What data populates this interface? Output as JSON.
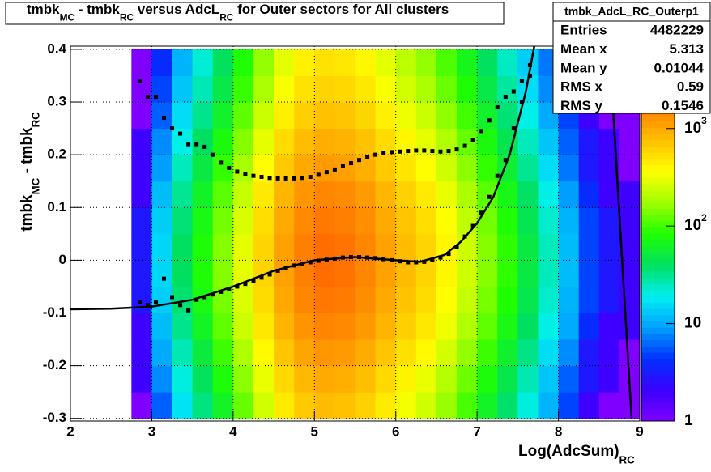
{
  "chart_data": {
    "type": "heatmap-profile",
    "title": [
      "tmbk",
      "MC",
      " - tmbk",
      "RC",
      " versus AdcL",
      "RC",
      " for Outer sectors for All clusters"
    ],
    "x_label": [
      "Log(AdcSum)",
      "RC"
    ],
    "y_label": [
      "tmbk",
      "MC",
      " - tmbk",
      "RC"
    ],
    "xlim": [
      2,
      9
    ],
    "xticks": [
      2,
      3,
      4,
      5,
      6,
      7,
      8,
      9
    ],
    "ylim": [
      -0.305,
      0.406
    ],
    "yticks": [
      -0.3,
      -0.2,
      -0.1,
      0,
      0.1,
      0.2,
      0.3,
      0.4
    ],
    "grid": true,
    "zlim": [
      1,
      7000
    ],
    "zlog": true,
    "zticks": [
      {
        "value": 1,
        "label": "1"
      },
      {
        "value": 10,
        "label": "10"
      },
      {
        "value": 100,
        "label": "10",
        "exponent": "2"
      },
      {
        "value": 1000,
        "label": "10",
        "exponent": "3"
      }
    ],
    "palette": [
      "#7f00ff",
      "#3a00ff",
      "#0030ff",
      "#00a0ff",
      "#00f0f0",
      "#00e060",
      "#20ff00",
      "#a0ff00",
      "#ffff00",
      "#ffc000",
      "#ff8000",
      "#ff3000",
      "#ff0000"
    ],
    "x_bins": [
      2.75,
      3,
      3.25,
      3.5,
      3.75,
      4,
      4.25,
      4.5,
      4.75,
      5,
      5.25,
      5.5,
      5.75,
      6,
      6.25,
      6.5,
      6.75,
      7,
      7.25,
      7.5,
      7.75,
      8,
      8.25,
      8.5,
      8.75,
      9
    ],
    "y_bins": [
      -0.3,
      -0.25,
      -0.2,
      -0.15,
      -0.1,
      -0.05,
      0,
      0.05,
      0.1,
      0.15,
      0.2,
      0.25,
      0.3,
      0.35,
      0.4
    ],
    "z": [
      [
        1,
        6,
        17,
        34,
        63,
        126,
        252,
        462,
        672,
        798,
        756,
        630,
        462,
        336,
        252,
        168,
        105,
        63,
        38,
        21,
        11,
        5,
        2,
        1,
        1
      ],
      [
        2,
        8,
        21,
        42,
        78,
        156,
        312,
        572,
        832,
        988,
        936,
        780,
        572,
        416,
        312,
        208,
        130,
        78,
        47,
        26,
        13,
        6,
        3,
        2,
        1
      ],
      [
        2,
        10,
        26,
        52,
        98,
        195,
        390,
        715,
        1040,
        1235,
        1170,
        975,
        715,
        520,
        390,
        260,
        163,
        98,
        59,
        33,
        16,
        8,
        3,
        2,
        1
      ],
      [
        2,
        12,
        32,
        64,
        120,
        240,
        480,
        880,
        1280,
        1520,
        1440,
        1200,
        880,
        640,
        480,
        320,
        200,
        120,
        72,
        40,
        20,
        10,
        4,
        2,
        2
      ],
      [
        3,
        14,
        37,
        74,
        138,
        276,
        552,
        1012,
        1472,
        1748,
        1656,
        1380,
        1012,
        736,
        552,
        368,
        230,
        138,
        83,
        46,
        23,
        11,
        5,
        3,
        2
      ],
      [
        3,
        15,
        40,
        80,
        150,
        300,
        600,
        1100,
        1600,
        1900,
        1800,
        1500,
        1100,
        800,
        600,
        400,
        250,
        150,
        90,
        50,
        25,
        12,
        5,
        3,
        2
      ],
      [
        3,
        15,
        40,
        80,
        150,
        300,
        600,
        1100,
        1600,
        1900,
        1800,
        1500,
        1100,
        800,
        600,
        400,
        250,
        150,
        90,
        50,
        25,
        12,
        5,
        3,
        2
      ],
      [
        3,
        14,
        36,
        72,
        135,
        270,
        540,
        990,
        1440,
        1710,
        1620,
        1350,
        990,
        720,
        540,
        360,
        225,
        135,
        81,
        45,
        23,
        11,
        5,
        3,
        2
      ],
      [
        2,
        12,
        31,
        62,
        117,
        234,
        468,
        858,
        1248,
        1482,
        1404,
        1170,
        858,
        624,
        468,
        312,
        195,
        117,
        70,
        39,
        20,
        9,
        4,
        2,
        2
      ],
      [
        2,
        9,
        25,
        50,
        93,
        186,
        372,
        682,
        992,
        1178,
        1116,
        930,
        682,
        496,
        372,
        248,
        155,
        93,
        56,
        31,
        16,
        7,
        3,
        2,
        1
      ],
      [
        2,
        8,
        20,
        40,
        75,
        150,
        300,
        550,
        800,
        950,
        900,
        750,
        550,
        400,
        300,
        200,
        125,
        75,
        45,
        25,
        13,
        6,
        3,
        2,
        1
      ],
      [
        1,
        6,
        16,
        32,
        60,
        120,
        240,
        440,
        640,
        760,
        720,
        600,
        440,
        320,
        240,
        160,
        100,
        60,
        36,
        20,
        10,
        5,
        2,
        1,
        1
      ],
      [
        1,
        5,
        13,
        26,
        48,
        96,
        192,
        352,
        512,
        608,
        576,
        480,
        352,
        256,
        192,
        128,
        80,
        48,
        29,
        16,
        8,
        4,
        2,
        1,
        1
      ],
      [
        1,
        4,
        11,
        22,
        41,
        81,
        162,
        297,
        432,
        513,
        486,
        405,
        297,
        216,
        162,
        108,
        68,
        41,
        24,
        14,
        7,
        3,
        1,
        1,
        1
      ]
    ],
    "profile_x": [
      2.85,
      2.95,
      3.05,
      3.15,
      3.25,
      3.35,
      3.45,
      3.55,
      3.65,
      3.75,
      3.85,
      3.95,
      4.05,
      4.15,
      4.25,
      4.35,
      4.45,
      4.55,
      4.65,
      4.75,
      4.85,
      4.95,
      5.05,
      5.15,
      5.25,
      5.35,
      5.45,
      5.55,
      5.65,
      5.75,
      5.85,
      5.95,
      6.05,
      6.15,
      6.25,
      6.35,
      6.45,
      6.55,
      6.65,
      6.75,
      6.85,
      6.95,
      7.05,
      7.15,
      7.25,
      7.35,
      7.45,
      7.55,
      7.65
    ],
    "series": [
      {
        "color": "#000000",
        "values": [
          -0.08,
          -0.085,
          -0.08,
          -0.035,
          -0.07,
          -0.085,
          -0.095,
          -0.075,
          -0.07,
          -0.065,
          -0.06,
          -0.055,
          -0.05,
          -0.045,
          -0.04,
          -0.033,
          -0.027,
          -0.02,
          -0.015,
          -0.01,
          -0.007,
          -0.004,
          -0.001,
          0.001,
          0.003,
          0.005,
          0.006,
          0.006,
          0.005,
          0.004,
          0.002,
          0,
          -0.002,
          -0.004,
          -0.004,
          -0.003,
          0,
          0.005,
          0.012,
          0.025,
          0.045,
          0.065,
          0.09,
          0.12,
          0.16,
          0.19,
          0.25,
          0.3,
          0.35
        ]
      },
      {
        "color": "#000000",
        "values": [
          0.34,
          0.31,
          0.31,
          0.27,
          0.25,
          0.24,
          0.22,
          0.22,
          0.215,
          0.2,
          0.185,
          0.175,
          0.168,
          0.163,
          0.16,
          0.158,
          0.156,
          0.155,
          0.155,
          0.155,
          0.156,
          0.158,
          0.162,
          0.167,
          0.172,
          0.178,
          0.184,
          0.19,
          0.195,
          0.2,
          0.203,
          0.205,
          0.206,
          0.207,
          0.208,
          0.208,
          0.207,
          0.206,
          0.207,
          0.21,
          0.217,
          0.228,
          0.245,
          0.265,
          0.29,
          0.31,
          0.32,
          0.34,
          0.37
        ]
      }
    ],
    "fits": [
      {
        "color": "#000000",
        "x": [
          2,
          2.5,
          3,
          3.5,
          4,
          4.5,
          5,
          5.5,
          6,
          6.3,
          6.6,
          6.8,
          7,
          7.2,
          7.4,
          7.6,
          7.72
        ],
        "y": [
          -0.093,
          -0.092,
          -0.088,
          -0.075,
          -0.05,
          -0.02,
          0,
          0.006,
          0,
          -0.003,
          0.01,
          0.035,
          0.07,
          0.12,
          0.2,
          0.32,
          0.42
        ]
      },
      {
        "color": "#000000",
        "x": [
          8.62,
          8.9
        ],
        "y": [
          0.42,
          -0.3
        ]
      }
    ],
    "stats": {
      "name": "tmbk_AdcL_RC_Outerp1",
      "rows": [
        {
          "label": "Entries",
          "value": 4482229
        },
        {
          "label": "Mean x",
          "value": 5.313
        },
        {
          "label": "Mean y",
          "value": 0.01044
        },
        {
          "label": "RMS x",
          "value": 0.59
        },
        {
          "label": "RMS y",
          "value": 0.1546
        }
      ]
    }
  }
}
